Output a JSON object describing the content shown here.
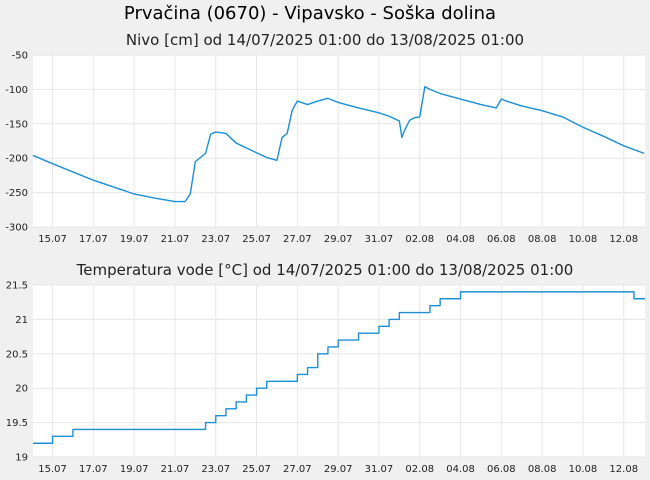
{
  "page": {
    "title": "Prvačina (0670) - Vipavsko - Soška dolina"
  },
  "colors": {
    "background": "#f0f0f0",
    "plot_background": "#ffffff",
    "series": "#1b8fd6",
    "grid": "#e6e6e6"
  },
  "chart_data": [
    {
      "type": "line",
      "title": "Nivo [cm] od 14/07/2025 01:00 do 13/08/2025 01:00",
      "xlabel": "",
      "ylabel": "",
      "ylim": [
        -300,
        -50
      ],
      "yticks": [
        "-50",
        "-100",
        "-150",
        "-200",
        "-250",
        "-300"
      ],
      "ytick_values": [
        -50,
        -100,
        -150,
        -200,
        -250,
        -300
      ],
      "xlim": [
        "2025-07-14 01:00",
        "2025-08-13 01:00"
      ],
      "xtick_labels": [
        "15.07",
        "17.07",
        "19.07",
        "21.07",
        "23.07",
        "25.07",
        "27.07",
        "29.07",
        "31.07",
        "02.08",
        "04.08",
        "06.08",
        "08.08",
        "10.08",
        "12.08"
      ],
      "xtick_dates": [
        "2025-07-15",
        "2025-07-17",
        "2025-07-19",
        "2025-07-21",
        "2025-07-23",
        "2025-07-25",
        "2025-07-27",
        "2025-07-29",
        "2025-07-31",
        "2025-08-02",
        "2025-08-04",
        "2025-08-06",
        "2025-08-08",
        "2025-08-10",
        "2025-08-12"
      ],
      "grid": true,
      "series": [
        {
          "x": [
            "2025-07-14 01:00",
            "2025-07-15 00:00",
            "2025-07-16 00:00",
            "2025-07-17 00:00",
            "2025-07-18 00:00",
            "2025-07-19 00:00",
            "2025-07-20 00:00",
            "2025-07-21 00:00",
            "2025-07-21 12:00",
            "2025-07-21 18:00",
            "2025-07-22 00:00",
            "2025-07-22 12:00",
            "2025-07-22 18:00",
            "2025-07-23 00:00",
            "2025-07-23 12:00",
            "2025-07-24 00:00",
            "2025-07-25 00:00",
            "2025-07-25 12:00",
            "2025-07-26 00:00",
            "2025-07-26 06:00",
            "2025-07-26 12:00",
            "2025-07-26 18:00",
            "2025-07-27 00:00",
            "2025-07-27 12:00",
            "2025-07-28 00:00",
            "2025-07-28 12:00",
            "2025-07-29 00:00",
            "2025-07-30 00:00",
            "2025-07-31 00:00",
            "2025-07-31 12:00",
            "2025-08-01 00:00",
            "2025-08-01 03:00",
            "2025-08-01 06:00",
            "2025-08-01 12:00",
            "2025-08-01 18:00",
            "2025-08-02 00:00",
            "2025-08-02 06:00",
            "2025-08-02 12:00",
            "2025-08-03 00:00",
            "2025-08-04 00:00",
            "2025-08-05 00:00",
            "2025-08-05 18:00",
            "2025-08-06 00:00",
            "2025-08-06 06:00",
            "2025-08-07 00:00",
            "2025-08-08 00:00",
            "2025-08-09 00:00",
            "2025-08-10 00:00",
            "2025-08-11 00:00",
            "2025-08-12 00:00",
            "2025-08-13 00:00"
          ],
          "values": [
            -196,
            -208,
            -220,
            -232,
            -242,
            -252,
            -258,
            -263,
            -263,
            -252,
            -205,
            -193,
            -165,
            -162,
            -164,
            -178,
            -192,
            -199,
            -203,
            -170,
            -164,
            -130,
            -117,
            -122,
            -117,
            -113,
            -119,
            -127,
            -134,
            -139,
            -146,
            -170,
            -160,
            -145,
            -141,
            -140,
            -96,
            -100,
            -106,
            -114,
            -122,
            -127,
            -114,
            -117,
            -124,
            -131,
            -140,
            -155,
            -168,
            -182,
            -193
          ]
        }
      ]
    },
    {
      "type": "line",
      "title": "Temperatura vode [°C] od 14/07/2025 01:00 do 13/08/2025 01:00",
      "xlabel": "",
      "ylabel": "",
      "ylim": [
        19,
        21.5
      ],
      "yticks": [
        "21.5",
        "21",
        "20.5",
        "20",
        "19.5",
        "19"
      ],
      "ytick_values": [
        21.5,
        21,
        20.5,
        20,
        19.5,
        19
      ],
      "xlim": [
        "2025-07-14 01:00",
        "2025-08-13 01:00"
      ],
      "xtick_labels": [
        "15.07",
        "17.07",
        "19.07",
        "21.07",
        "23.07",
        "25.07",
        "27.07",
        "29.07",
        "31.07",
        "02.08",
        "04.08",
        "06.08",
        "08.08",
        "10.08",
        "12.08"
      ],
      "xtick_dates": [
        "2025-07-15",
        "2025-07-17",
        "2025-07-19",
        "2025-07-21",
        "2025-07-23",
        "2025-07-25",
        "2025-07-27",
        "2025-07-29",
        "2025-07-31",
        "2025-08-02",
        "2025-08-04",
        "2025-08-06",
        "2025-08-08",
        "2025-08-10",
        "2025-08-12"
      ],
      "grid": true,
      "series": [
        {
          "x": [
            "2025-07-14 01:00",
            "2025-07-14 12:00",
            "2025-07-15 00:00",
            "2025-07-15 12:00",
            "2025-07-16 00:00",
            "2025-07-17 00:00",
            "2025-07-18 00:00",
            "2025-07-19 00:00",
            "2025-07-20 00:00",
            "2025-07-21 00:00",
            "2025-07-22 00:00",
            "2025-07-22 12:00",
            "2025-07-23 00:00",
            "2025-07-23 12:00",
            "2025-07-24 00:00",
            "2025-07-24 12:00",
            "2025-07-25 00:00",
            "2025-07-25 12:00",
            "2025-07-26 00:00",
            "2025-07-26 12:00",
            "2025-07-27 00:00",
            "2025-07-27 12:00",
            "2025-07-28 00:00",
            "2025-07-28 12:00",
            "2025-07-29 00:00",
            "2025-07-29 12:00",
            "2025-07-30 00:00",
            "2025-07-30 12:00",
            "2025-07-31 00:00",
            "2025-07-31 12:00",
            "2025-08-01 00:00",
            "2025-08-01 12:00",
            "2025-08-02 00:00",
            "2025-08-02 12:00",
            "2025-08-03 00:00",
            "2025-08-04 00:00",
            "2025-08-05 00:00",
            "2025-08-06 00:00",
            "2025-08-07 00:00",
            "2025-08-08 00:00",
            "2025-08-09 00:00",
            "2025-08-10 00:00",
            "2025-08-11 00:00",
            "2025-08-12 00:00",
            "2025-08-12 12:00",
            "2025-08-12 18:00",
            "2025-08-13 01:00"
          ],
          "values": [
            19.2,
            19.2,
            19.3,
            19.3,
            19.4,
            19.4,
            19.4,
            19.4,
            19.4,
            19.4,
            19.4,
            19.5,
            19.6,
            19.7,
            19.8,
            19.9,
            20.0,
            20.1,
            20.1,
            20.1,
            20.2,
            20.3,
            20.5,
            20.6,
            20.7,
            20.7,
            20.8,
            20.8,
            20.9,
            21.0,
            21.1,
            21.1,
            21.1,
            21.2,
            21.3,
            21.4,
            21.4,
            21.4,
            21.4,
            21.4,
            21.4,
            21.4,
            21.4,
            21.4,
            21.3,
            21.3,
            21.3
          ]
        }
      ]
    }
  ]
}
